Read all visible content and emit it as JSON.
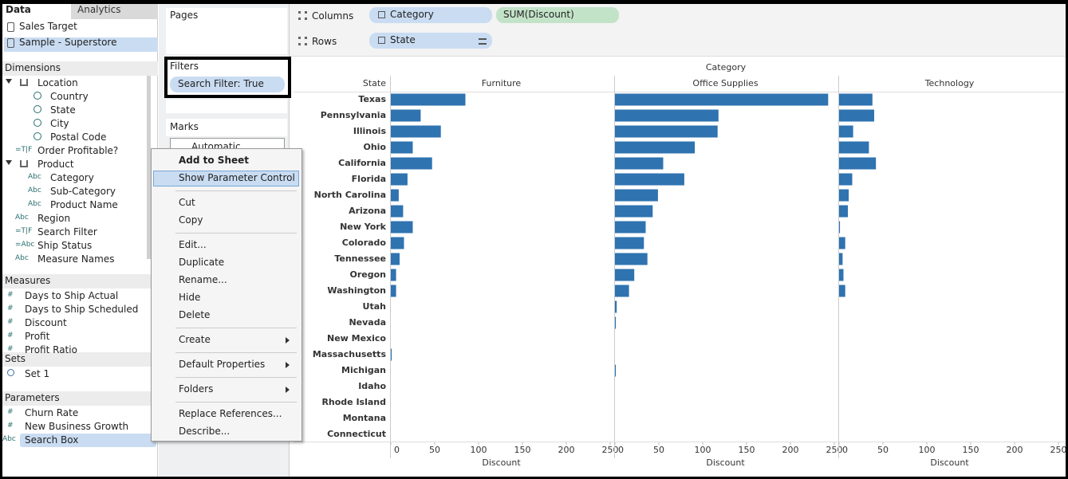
{
  "data_pane": {
    "tab_data": "Data",
    "tab_analytics": "Analytics",
    "sources": [
      "Sales Target",
      "Sample - Superstore"
    ],
    "dimensions": {
      "title": "Dimensions",
      "fields": [
        {
          "label": "Location",
          "children": [
            {
              "label": "Country"
            },
            {
              "label": "State"
            },
            {
              "label": "City"
            },
            {
              "label": "Postal Code"
            }
          ]
        },
        {
          "icon": "=T|F",
          "label": "Order Profitable?"
        },
        {
          "label": "Product",
          "children": [
            {
              "icon": "Abc",
              "label": "Category"
            },
            {
              "icon": "Abc",
              "label": "Sub-Category"
            },
            {
              "icon": "Abc",
              "label": "Product Name"
            }
          ]
        },
        {
          "icon": "Abc",
          "label": "Region"
        },
        {
          "icon": "=T|F",
          "label": "Search Filter"
        },
        {
          "icon": "=Abc",
          "label": "Ship Status"
        },
        {
          "icon": "Abc",
          "label": "Measure Names"
        }
      ]
    },
    "measures": {
      "title": "Measures",
      "fields": [
        {
          "icon": "#",
          "label": "Days to Ship Actual"
        },
        {
          "icon": "#",
          "label": "Days to Ship Scheduled"
        },
        {
          "icon": "#",
          "label": "Discount"
        },
        {
          "icon": "#",
          "label": "Profit"
        },
        {
          "icon": "#",
          "label": "Profit Ratio"
        }
      ]
    },
    "sets": {
      "title": "Sets",
      "fields": [
        {
          "label": "Set 1"
        }
      ]
    },
    "parameters": {
      "title": "Parameters",
      "fields": [
        {
          "icon": "#",
          "label": "Churn Rate"
        },
        {
          "icon": "#",
          "label": "New Business Growth"
        },
        {
          "icon": "Abc",
          "label": "Search Box"
        }
      ]
    }
  },
  "shelves": {
    "pages": "Pages",
    "filters": "Filters",
    "filter_pill": "Search Filter: True",
    "marks": "Marks",
    "marks_type": "Automatic",
    "columns": "Columns",
    "columns_pills": [
      "Category",
      "SUM(Discount)"
    ],
    "rows": "Rows",
    "rows_pills": [
      "State"
    ]
  },
  "context_menu": {
    "groups": [
      [
        {
          "label": "Add to Sheet"
        },
        {
          "label": "Show Parameter Control"
        }
      ],
      [
        {
          "label": "Cut"
        },
        {
          "label": "Copy"
        }
      ],
      [
        {
          "label": "Edit..."
        },
        {
          "label": "Duplicate"
        },
        {
          "label": "Rename..."
        },
        {
          "label": "Hide"
        },
        {
          "label": "Delete"
        }
      ],
      [
        {
          "label": "Create",
          "submenu": true
        }
      ],
      [
        {
          "label": "Default Properties",
          "submenu": true
        }
      ],
      [
        {
          "label": "Folders",
          "submenu": true
        }
      ],
      [
        {
          "label": "Replace References..."
        },
        {
          "label": "Describe..."
        }
      ]
    ]
  },
  "chart_data": {
    "type": "bar",
    "orientation": "horizontal",
    "title": "Category",
    "y_label": "State",
    "x_label": "Discount",
    "categories": [
      "Texas",
      "Pennsylvania",
      "Illinois",
      "Ohio",
      "California",
      "Florida",
      "North Carolina",
      "Arizona",
      "New York",
      "Colorado",
      "Tennessee",
      "Oregon",
      "Washington",
      "Utah",
      "Nevada",
      "New Mexico",
      "Massachusetts",
      "Michigan",
      "Idaho",
      "Rhode Island",
      "Montana",
      "Connecticut"
    ],
    "series": [
      {
        "name": "Furniture",
        "color": "#2f73b0",
        "values": [
          85,
          34,
          57,
          25,
          47,
          19,
          9,
          14,
          25,
          15,
          10,
          6,
          6,
          null,
          null,
          null,
          1,
          null,
          null,
          null,
          null,
          null
        ]
      },
      {
        "name": "Office Supplies",
        "color": "#2f73b0",
        "values": [
          243,
          118,
          117,
          91,
          55,
          79,
          49,
          43,
          35,
          33,
          37,
          22,
          16,
          2,
          1,
          null,
          null,
          1,
          null,
          null,
          null,
          null
        ]
      },
      {
        "name": "Technology",
        "color": "#2f73b0",
        "values": [
          38,
          40,
          16,
          34,
          42,
          15,
          11,
          10,
          1,
          7,
          4,
          5,
          7,
          null,
          null,
          null,
          null,
          null,
          null,
          null,
          null,
          null
        ]
      }
    ],
    "xlim": [
      0,
      250
    ],
    "xticks": [
      0,
      50,
      100,
      150,
      200,
      250
    ]
  }
}
